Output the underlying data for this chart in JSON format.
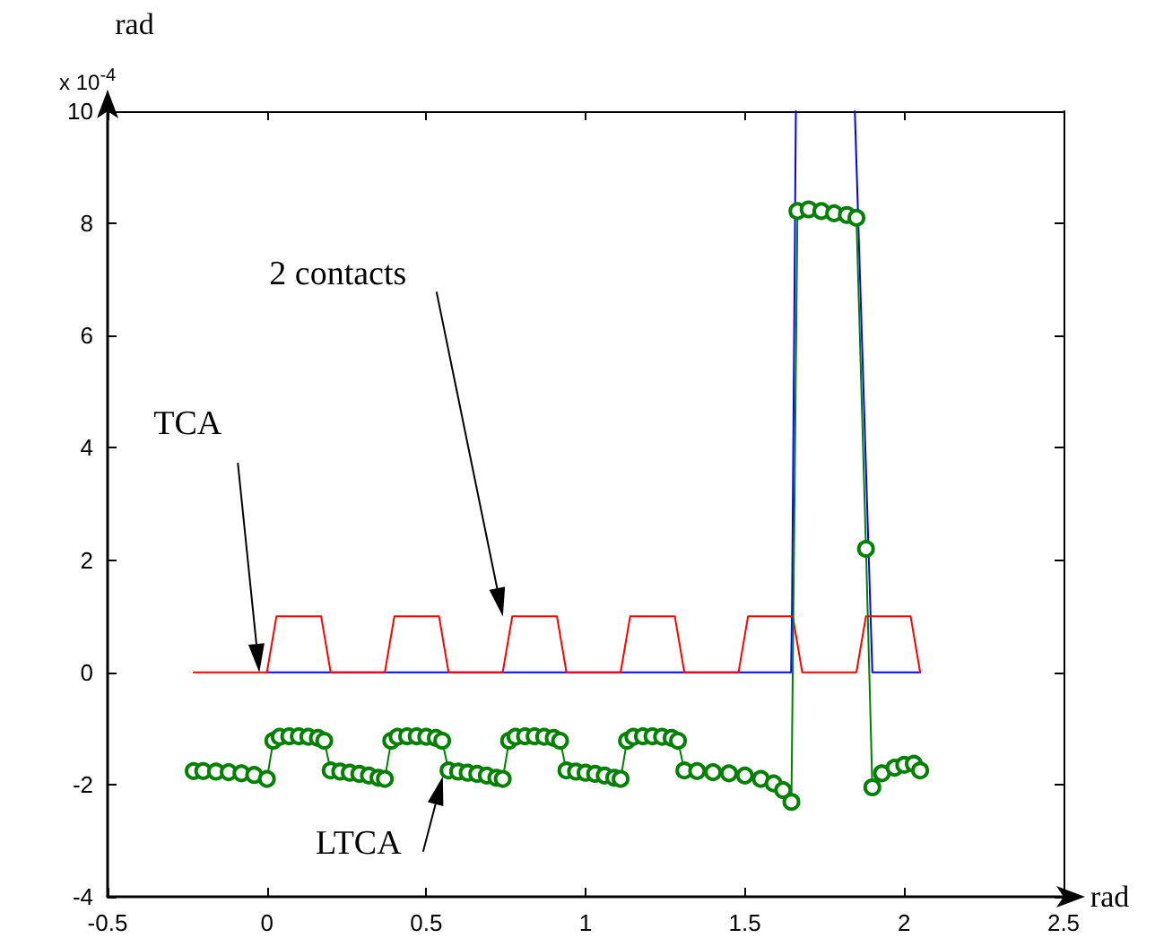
{
  "chart_data": {
    "type": "line",
    "ylabel": "rad",
    "xlabel": "rad",
    "annotations": [
      "x 10$^{-4}$",
      "TCA",
      "2 contacts",
      "LTCA"
    ],
    "xlim": [
      -0.5,
      2.5
    ],
    "xticks": [
      -0.5,
      0,
      0.5,
      1,
      1.5,
      2,
      2.5
    ],
    "ylim": [
      -4,
      10
    ],
    "yticks": [
      -4,
      -2,
      0,
      2,
      4,
      6,
      8,
      10
    ],
    "grid": false,
    "series": [
      {
        "color": "#0000ff",
        "marker": "none",
        "x": [
          0,
          1.645,
          1.648,
          1.66,
          1.75,
          1.845,
          1.9,
          2.05
        ],
        "values": [
          0,
          0,
          1.2,
          10,
          null,
          10,
          0,
          0
        ]
      },
      {
        "color": "#ff0000",
        "marker": "none",
        "x": [
          -0.23,
          0,
          0.03,
          0.17,
          0.2,
          0.37,
          0.4,
          0.54,
          0.57,
          0.74,
          0.77,
          0.91,
          0.94,
          1.11,
          1.14,
          1.28,
          1.31,
          1.48,
          1.51,
          1.65,
          1.68,
          1.85,
          1.88,
          2.02,
          2.05
        ],
        "values": [
          0,
          0,
          1,
          1,
          0,
          0,
          1,
          1,
          0,
          0,
          1,
          1,
          0,
          0,
          1,
          1,
          0,
          0,
          1,
          1,
          0,
          0,
          1,
          1,
          0
        ]
      },
      {
        "color": "#008000",
        "marker": "circle",
        "x": [
          -0.23,
          -0.2,
          -0.16,
          -0.12,
          -0.08,
          -0.04,
          0,
          0.02,
          0.04,
          0.07,
          0.1,
          0.13,
          0.16,
          0.18,
          0.2,
          0.23,
          0.26,
          0.29,
          0.32,
          0.35,
          0.37,
          0.39,
          0.41,
          0.44,
          0.47,
          0.5,
          0.53,
          0.55,
          0.57,
          0.6,
          0.63,
          0.66,
          0.69,
          0.72,
          0.74,
          0.76,
          0.78,
          0.81,
          0.84,
          0.87,
          0.9,
          0.92,
          0.94,
          0.97,
          1,
          1.03,
          1.06,
          1.09,
          1.11,
          1.13,
          1.15,
          1.18,
          1.21,
          1.24,
          1.27,
          1.29,
          1.31,
          1.35,
          1.4,
          1.45,
          1.5,
          1.55,
          1.59,
          1.62,
          1.646,
          1.665,
          1.7,
          1.74,
          1.78,
          1.82,
          1.85,
          1.88,
          1.9,
          1.93,
          1.97,
          2,
          2.03,
          2.05
        ],
        "values": [
          -1.76,
          -1.76,
          -1.77,
          -1.78,
          -1.8,
          -1.83,
          -1.9,
          -1.22,
          -1.15,
          -1.14,
          -1.14,
          -1.15,
          -1.17,
          -1.22,
          -1.75,
          -1.77,
          -1.79,
          -1.81,
          -1.84,
          -1.88,
          -1.9,
          -1.22,
          -1.15,
          -1.14,
          -1.14,
          -1.15,
          -1.17,
          -1.22,
          -1.75,
          -1.77,
          -1.79,
          -1.81,
          -1.84,
          -1.88,
          -1.9,
          -1.22,
          -1.15,
          -1.14,
          -1.14,
          -1.15,
          -1.17,
          -1.22,
          -1.75,
          -1.77,
          -1.79,
          -1.81,
          -1.84,
          -1.88,
          -1.9,
          -1.22,
          -1.15,
          -1.14,
          -1.14,
          -1.15,
          -1.17,
          -1.22,
          -1.75,
          -1.76,
          -1.78,
          -1.8,
          -1.84,
          -1.9,
          -1.98,
          -2.1,
          -2.31,
          8.22,
          8.25,
          8.22,
          8.18,
          8.15,
          8.1,
          2.2,
          -2.05,
          -1.8,
          -1.7,
          -1.65,
          -1.63,
          -1.75
        ]
      }
    ]
  }
}
